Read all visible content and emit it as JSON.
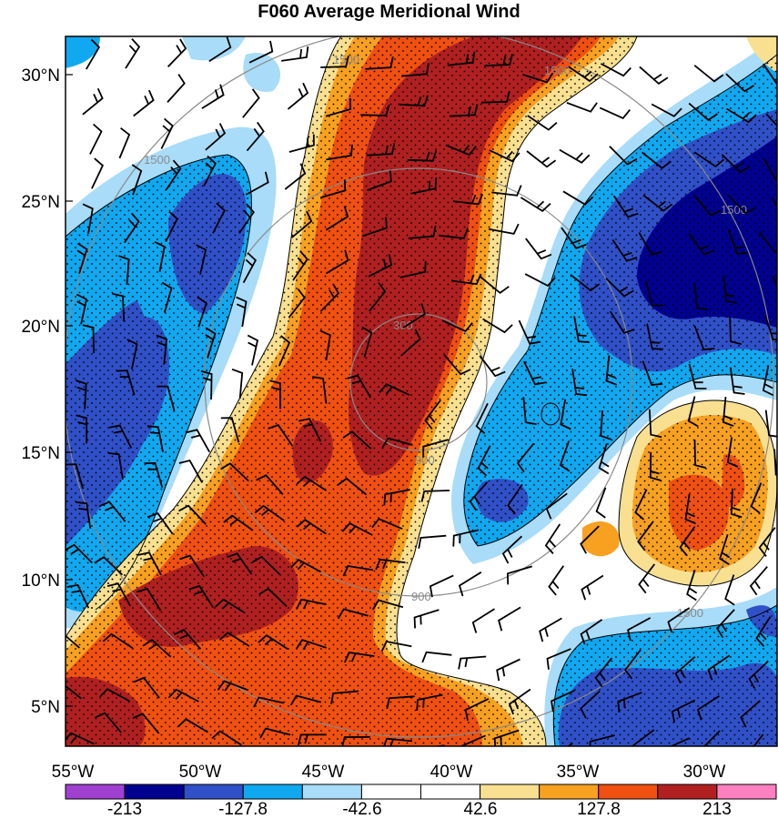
{
  "title": "F060 Average Meridional Wind",
  "map": {
    "lat_labels": [
      "30°N",
      "25°N",
      "20°N",
      "15°N",
      "10°N",
      "5°N"
    ],
    "lon_labels": [
      "55°W",
      "50°W",
      "45°W",
      "40°W",
      "35°W",
      "30°W"
    ],
    "ring_labels": [
      "300",
      "900",
      "1500"
    ]
  },
  "colorbar": {
    "labels": [
      "-213",
      "-127.8",
      "-42.6",
      "42.6",
      "127.8",
      "213"
    ],
    "colors": [
      "#a040d0",
      "#000090",
      "#3050c8",
      "#10a8f0",
      "#a8dcf8",
      "#ffffff",
      "#ffffff",
      "#f8e090",
      "#f8a020",
      "#f05010",
      "#b02020",
      "#ff80c0"
    ]
  },
  "palette": {
    "dark_red": "#b02020",
    "red_orange": "#f05010",
    "orange": "#f8a020",
    "pale_yellow": "#f8e090",
    "white": "#ffffff",
    "light_blue": "#a8dcf8",
    "sky_blue": "#10a8f0",
    "medium_blue": "#3050c8",
    "navy": "#000090"
  }
}
